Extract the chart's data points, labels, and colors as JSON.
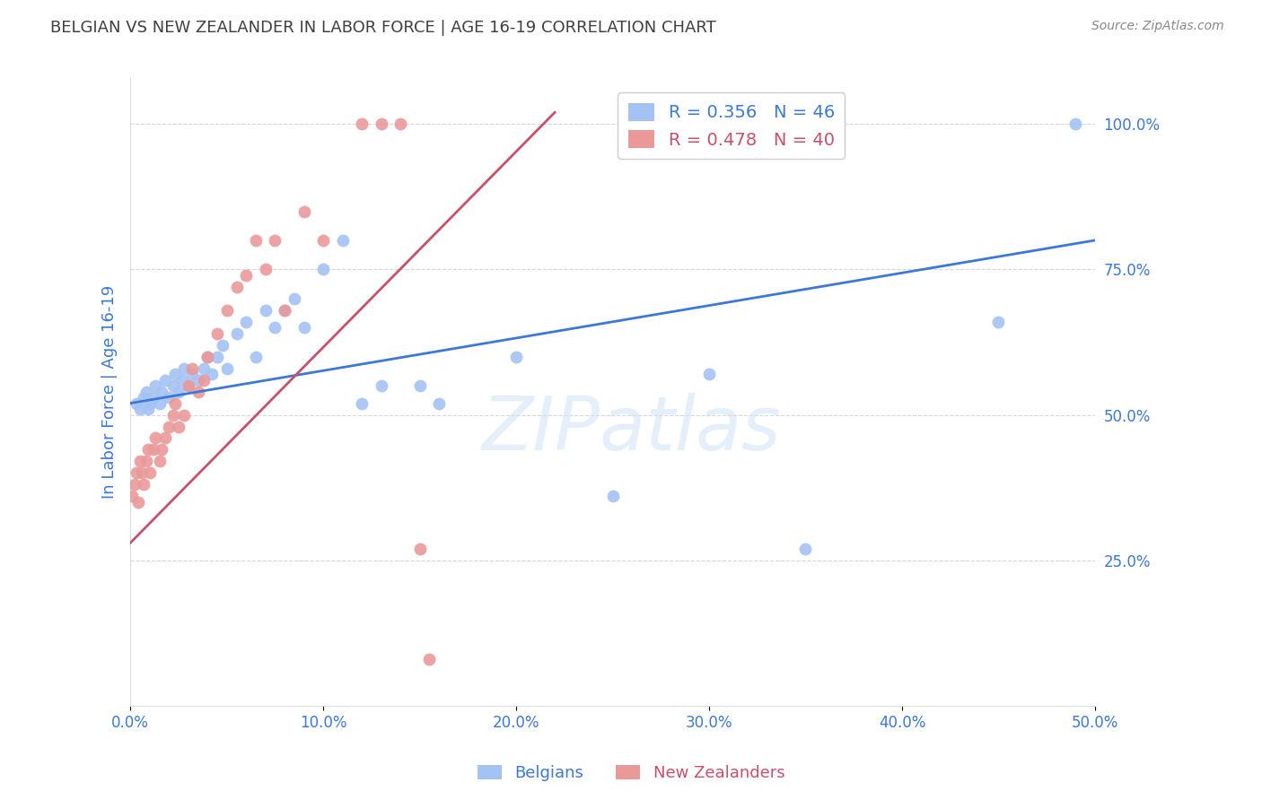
{
  "title": "BELGIAN VS NEW ZEALANDER IN LABOR FORCE | AGE 16-19 CORRELATION CHART",
  "source": "Source: ZipAtlas.com",
  "ylabel": "In Labor Force | Age 16-19",
  "xlim": [
    0.0,
    0.5
  ],
  "ylim": [
    0.0,
    1.08
  ],
  "xticks": [
    0.0,
    0.1,
    0.2,
    0.3,
    0.4,
    0.5
  ],
  "xtick_labels": [
    "0.0%",
    "10.0%",
    "20.0%",
    "30.0%",
    "40.0%",
    "50.0%"
  ],
  "yticks": [
    0.25,
    0.5,
    0.75,
    1.0
  ],
  "ytick_labels": [
    "25.0%",
    "50.0%",
    "75.0%",
    "100.0%"
  ],
  "blue_R": 0.356,
  "blue_N": 46,
  "pink_R": 0.478,
  "pink_N": 40,
  "blue_color": "#a4c2f4",
  "pink_color": "#ea9999",
  "blue_line_color": "#3c78d8",
  "pink_line_color": "#c9506a",
  "grid_color": "#cccccc",
  "bg_color": "#ffffff",
  "title_color": "#404040",
  "axis_label_color": "#3c78d8",
  "tick_label_color": "#3c78d8",
  "blue_x": [
    0.003,
    0.005,
    0.007,
    0.008,
    0.009,
    0.01,
    0.012,
    0.013,
    0.015,
    0.016,
    0.018,
    0.02,
    0.022,
    0.023,
    0.025,
    0.027,
    0.028,
    0.03,
    0.032,
    0.035,
    0.038,
    0.04,
    0.042,
    0.045,
    0.048,
    0.05,
    0.055,
    0.06,
    0.065,
    0.07,
    0.075,
    0.08,
    0.085,
    0.09,
    0.1,
    0.11,
    0.12,
    0.13,
    0.15,
    0.16,
    0.2,
    0.25,
    0.3,
    0.35,
    0.45,
    0.49
  ],
  "blue_y": [
    0.52,
    0.51,
    0.53,
    0.54,
    0.51,
    0.52,
    0.53,
    0.55,
    0.52,
    0.54,
    0.56,
    0.53,
    0.55,
    0.57,
    0.54,
    0.56,
    0.58,
    0.55,
    0.57,
    0.56,
    0.58,
    0.6,
    0.57,
    0.6,
    0.62,
    0.58,
    0.64,
    0.66,
    0.6,
    0.68,
    0.65,
    0.68,
    0.7,
    0.65,
    0.75,
    0.8,
    0.52,
    0.55,
    0.55,
    0.52,
    0.6,
    0.36,
    0.57,
    0.27,
    0.66,
    1.0
  ],
  "pink_x": [
    0.001,
    0.002,
    0.003,
    0.004,
    0.005,
    0.006,
    0.007,
    0.008,
    0.009,
    0.01,
    0.012,
    0.013,
    0.015,
    0.016,
    0.018,
    0.02,
    0.022,
    0.023,
    0.025,
    0.028,
    0.03,
    0.032,
    0.035,
    0.038,
    0.04,
    0.045,
    0.05,
    0.055,
    0.06,
    0.065,
    0.07,
    0.075,
    0.08,
    0.09,
    0.1,
    0.12,
    0.13,
    0.14,
    0.15,
    0.155
  ],
  "pink_y": [
    0.36,
    0.38,
    0.4,
    0.35,
    0.42,
    0.4,
    0.38,
    0.42,
    0.44,
    0.4,
    0.44,
    0.46,
    0.42,
    0.44,
    0.46,
    0.48,
    0.5,
    0.52,
    0.48,
    0.5,
    0.55,
    0.58,
    0.54,
    0.56,
    0.6,
    0.64,
    0.68,
    0.72,
    0.74,
    0.8,
    0.75,
    0.8,
    0.68,
    0.85,
    0.8,
    1.0,
    1.0,
    1.0,
    0.27,
    0.08
  ],
  "blue_line_x": [
    0.0,
    0.5
  ],
  "blue_line_y": [
    0.52,
    0.8
  ],
  "pink_line_x": [
    0.0,
    0.22
  ],
  "pink_line_y": [
    0.28,
    1.02
  ]
}
